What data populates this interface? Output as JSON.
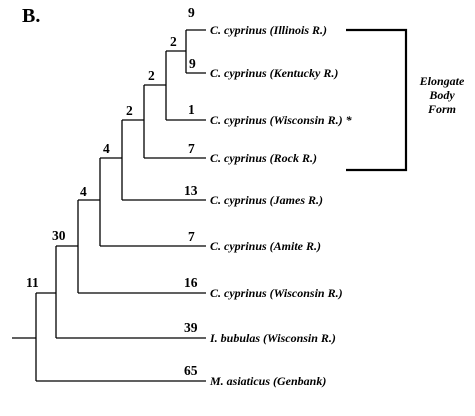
{
  "figure": {
    "panel_label": "B.",
    "tree": {
      "taxa": [
        {
          "id": "illinois",
          "name": "C. cyprinus (Illinois R.)",
          "support": "9"
        },
        {
          "id": "kentucky",
          "name": "C. cyprinus (Kentucky R.)",
          "support": "9"
        },
        {
          "id": "wisconsin1",
          "name": "C. cyprinus (Wisconsin R.) *",
          "support": "1"
        },
        {
          "id": "rock",
          "name": "C. cyprinus (Rock R.)",
          "support": "7"
        },
        {
          "id": "james",
          "name": "C. cyprinus (James R.)",
          "support": "13"
        },
        {
          "id": "amite",
          "name": "C. cyprinus (Amite R.)",
          "support": "7"
        },
        {
          "id": "wisconsin2",
          "name": "C. cyprinus (Wisconsin R.)",
          "support": "16"
        },
        {
          "id": "bubulas",
          "name": "I. bubulas (Wisconsin R.)",
          "support": "39"
        },
        {
          "id": "asiaticus",
          "name": "M. asiaticus (Genbank)",
          "support": "65"
        }
      ],
      "internal_nodes": [
        {
          "id": "n_ik",
          "support": "2"
        },
        {
          "id": "n_ikw",
          "support": "2"
        },
        {
          "id": "n_ikwr",
          "support": "2"
        },
        {
          "id": "n_j",
          "support": "4"
        },
        {
          "id": "n_a",
          "support": "4"
        },
        {
          "id": "n_w2",
          "support": "30"
        },
        {
          "id": "n_ib",
          "support": "11"
        }
      ]
    },
    "group_label": [
      "Elongate",
      "Body",
      "Form"
    ]
  }
}
